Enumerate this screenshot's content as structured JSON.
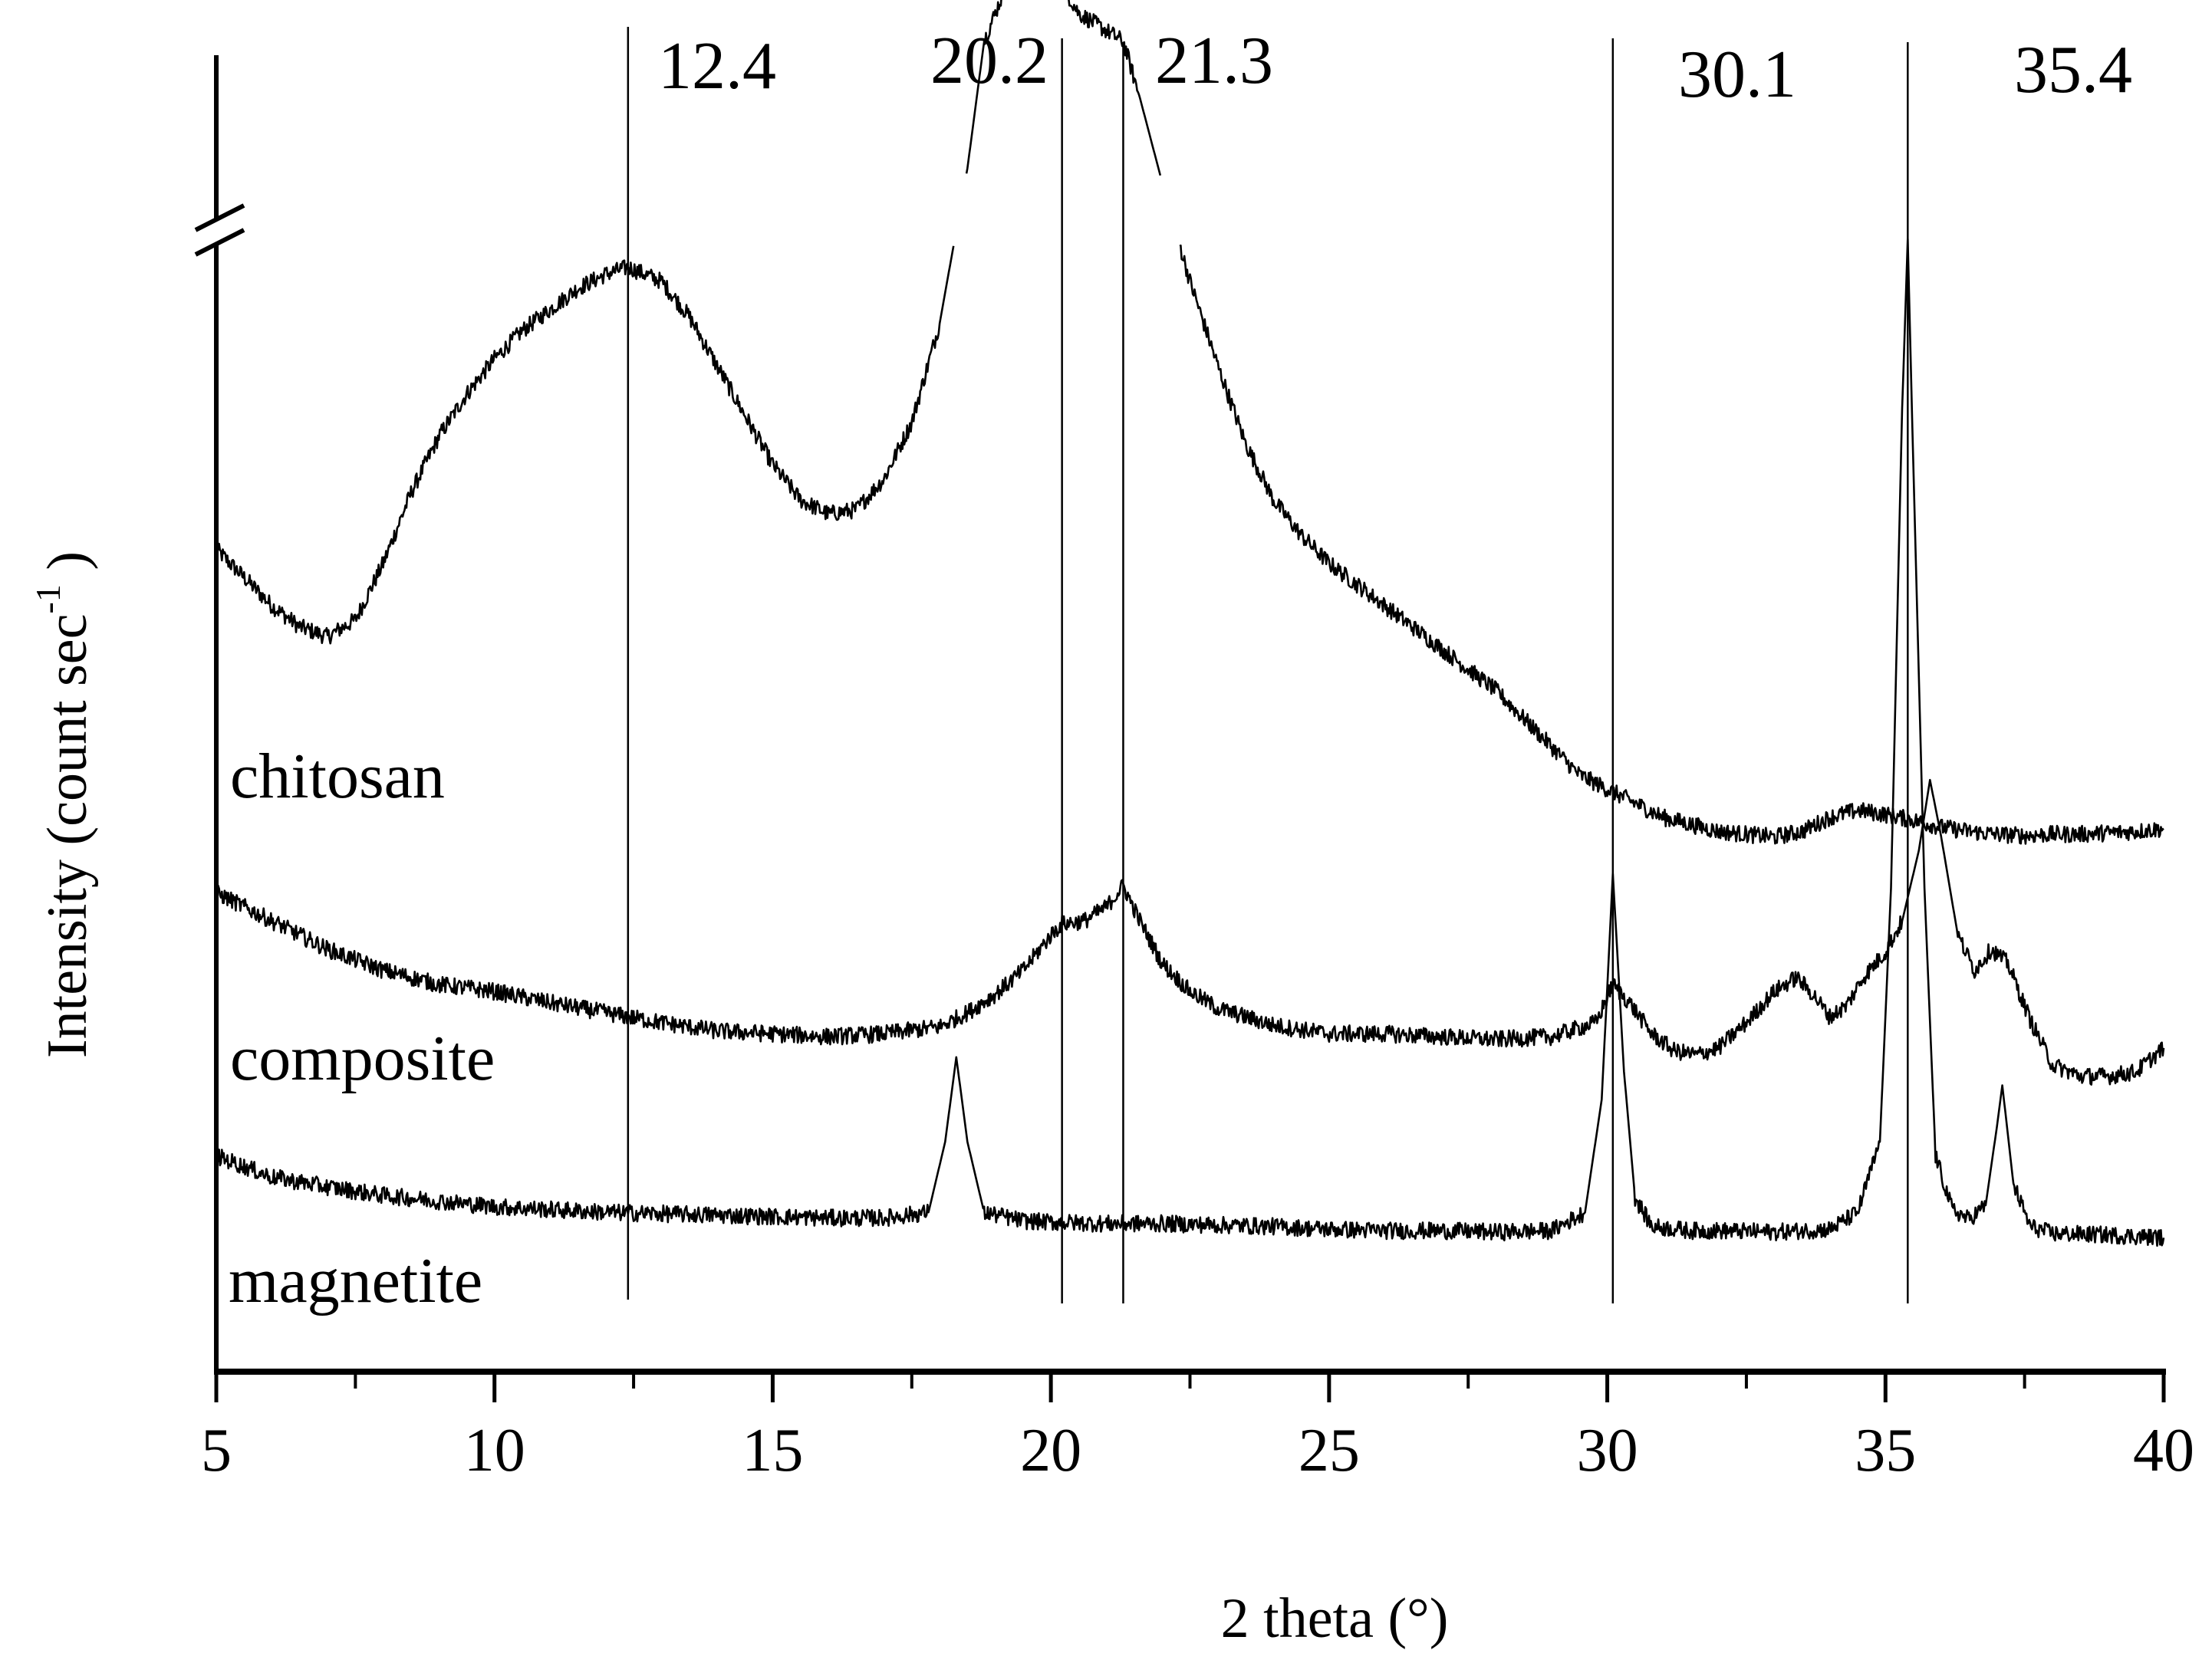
{
  "chart_data": {
    "type": "line",
    "title": "",
    "xlabel": "2 theta (°)",
    "ylabel": "Intensity (count sec",
    "ylabel_superscript": "-1",
    "ylabel_close": ")",
    "xlim": [
      5,
      40
    ],
    "x_ticks": [
      5,
      10,
      15,
      20,
      25,
      30,
      35,
      40
    ],
    "x_minor_ticks": [
      7.5,
      12.5,
      17.5,
      22.5,
      27.5,
      32.5,
      37.5
    ],
    "y_axis_break": true,
    "y_ticks": [],
    "grid": false,
    "legend": "inline labels",
    "reference_lines": [
      {
        "x": 12.4,
        "label": "12.4"
      },
      {
        "x": 20.2,
        "label": "20.2"
      },
      {
        "x": 21.3,
        "label": "21.3"
      },
      {
        "x": 30.1,
        "label": "30.1"
      },
      {
        "x": 35.4,
        "label": "35.4"
      }
    ],
    "series": [
      {
        "name": "chitosan",
        "label": "chitosan",
        "note": "stacked offset trace; y values are pixel-relative intensity (arbitrary units, higher = more intense)",
        "x": [
          5,
          5.5,
          6,
          6.5,
          7,
          7.5,
          8,
          8.5,
          9,
          9.5,
          10,
          10.5,
          11,
          11.5,
          12,
          12.4,
          13,
          13.5,
          14,
          14.5,
          15,
          15.5,
          16,
          16.5,
          17,
          17.5,
          18,
          18.5,
          18.8,
          19.2,
          19.7,
          20.2,
          20.5,
          21.3,
          21.6,
          22,
          22.5,
          23,
          23.5,
          24,
          24.5,
          25,
          25.5,
          26,
          26.5,
          27,
          27.5,
          28,
          28.5,
          29,
          29.5,
          30,
          30.5,
          31,
          31.5,
          32,
          32.5,
          33,
          33.5,
          34,
          34.5,
          35,
          35.5,
          36,
          36.5,
          37,
          37.5,
          38,
          38.5,
          39,
          39.5,
          40
        ],
        "y": [
          540,
          520,
          500,
          485,
          478,
          490,
          530,
          580,
          620,
          650,
          675,
          695,
          710,
          725,
          735,
          740,
          730,
          705,
          670,
          635,
          600,
          575,
          565,
          568,
          590,
          630,
          700,
          810,
          900,
          940,
          955,
          940,
          920,
          900,
          860,
          800,
          730,
          670,
          615,
          575,
          550,
          530,
          515,
          500,
          485,
          470,
          455,
          440,
          420,
          400,
          380,
          370,
          360,
          350,
          345,
          340,
          338,
          336,
          340,
          350,
          355,
          352,
          348,
          343,
          340,
          338,
          337,
          338,
          338,
          339,
          340,
          342
        ]
      },
      {
        "name": "composite",
        "label": "composite",
        "x": [
          5,
          6,
          7,
          8,
          9,
          10,
          11,
          12,
          12.4,
          13,
          14,
          15,
          16,
          17,
          18,
          18.5,
          19,
          19.5,
          20,
          20.2,
          20.6,
          21,
          21.3,
          21.6,
          22,
          22.5,
          23,
          24,
          25,
          26,
          27,
          28,
          29,
          29.8,
          30.1,
          30.4,
          30.8,
          31.2,
          31.6,
          32,
          32.5,
          33,
          33.4,
          33.7,
          34,
          34.3,
          34.6,
          35,
          35.3,
          35.6,
          35.8,
          36,
          36.3,
          36.6,
          36.9,
          37.2,
          37.6,
          38,
          38.5,
          39,
          39.5,
          40
        ],
        "y": [
          340,
          320,
          300,
          285,
          275,
          270,
          262,
          255,
          252,
          248,
          242,
          240,
          238,
          240,
          245,
          255,
          268,
          285,
          310,
          318,
          320,
          330,
          345,
          320,
          290,
          270,
          258,
          246,
          240,
          240,
          238,
          236,
          238,
          248,
          275,
          262,
          240,
          228,
          225,
          230,
          248,
          270,
          280,
          268,
          252,
          260,
          280,
          298,
          320,
          370,
          420,
          380,
          310,
          285,
          300,
          290,
          250,
          218,
          210,
          210,
          213,
          230
        ]
      },
      {
        "name": "magnetite",
        "label": "magnetite",
        "x": [
          5,
          6,
          7,
          8,
          9,
          10,
          11,
          12,
          13,
          14,
          15,
          16,
          17,
          17.8,
          18.1,
          18.3,
          18.5,
          18.8,
          19.5,
          20,
          21,
          22,
          23,
          24,
          25,
          26,
          27,
          28,
          29,
          29.6,
          29.9,
          30.1,
          30.3,
          30.5,
          30.8,
          31.5,
          32,
          33,
          34,
          34.5,
          34.9,
          35.1,
          35.3,
          35.4,
          35.5,
          35.7,
          35.9,
          36.2,
          36.5,
          36.8,
          37,
          37.1,
          37.3,
          37.6,
          38,
          39,
          40
        ],
        "y": [
          110,
          95,
          88,
          82,
          78,
          74,
          72,
          70,
          69,
          68,
          67,
          66,
          66,
          70,
          120,
          180,
          120,
          70,
          64,
          63,
          62,
          62,
          61,
          60,
          58,
          57,
          57,
          56,
          57,
          70,
          150,
          310,
          170,
          80,
          60,
          57,
          57,
          56,
          58,
          70,
          120,
          300,
          640,
          760,
          600,
          300,
          110,
          72,
          65,
          75,
          130,
          160,
          90,
          60,
          55,
          54,
          52
        ]
      }
    ]
  },
  "labels": {
    "chitosan": "chitosan",
    "composite": "composite",
    "magnetite": "magnetite"
  },
  "axes": {
    "x_title": "2 theta (°)",
    "y_title_main": "Intensity (count sec",
    "y_title_sup": "-1",
    "y_title_close": " )"
  }
}
